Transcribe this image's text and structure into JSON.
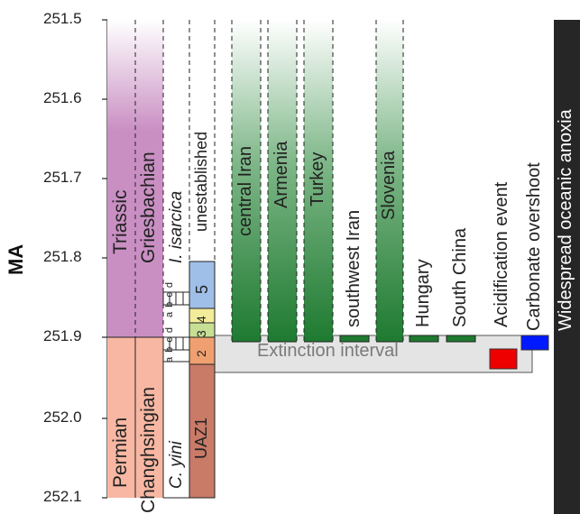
{
  "axis": {
    "label": "MA",
    "ticks": [
      "251.5",
      "251.6",
      "251.7",
      "251.8",
      "251.9",
      "252.0",
      "252.1"
    ]
  },
  "columns": {
    "system": {
      "upper": "Triassic",
      "lower": "Permian"
    },
    "stage": {
      "upper": "Griesbachian",
      "lower": "Changhsingian"
    },
    "conodont_zone": {
      "upper": "I. isarcica",
      "lower_prefix": "C. ",
      "lower_italic": "yini",
      "subzones": "a b c d"
    },
    "uaz": {
      "upper": "unestablished",
      "zones": [
        "5",
        "4",
        "3",
        "2"
      ],
      "lower": "UAZ1"
    }
  },
  "localities": [
    "central Iran",
    "Armenia",
    "Turkey",
    "southwest Iran",
    "Slovenia",
    "Hungary",
    "South China"
  ],
  "events": {
    "extinction": "Extinction interval",
    "acidification": "Acidification event",
    "carbonate": "Carbonate overshoot",
    "anoxia": "Widespread oceanic anoxia"
  },
  "colors": {
    "triassic_purple": "#c98fc3",
    "permian_pink": "#f7b7a3",
    "uaz1_brown": "#c97b68",
    "zone5_blue": "#9fbfe8",
    "zone4_yellow": "#f2ec9a",
    "zone3_green": "#c7df95",
    "zone2_orange": "#f0a070",
    "green_dark": "#1e7a30",
    "extinction_grey": "#e4e4e4",
    "acidification_red": "#ee0000",
    "carbonate_blue": "#0019ff",
    "anoxia_black": "#262626"
  }
}
